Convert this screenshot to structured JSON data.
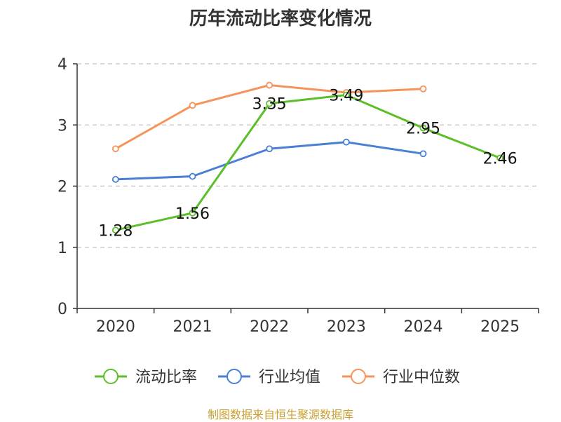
{
  "chart_data": {
    "type": "line",
    "title": "历年流动比率变化情况",
    "categories": [
      "2020",
      "2021",
      "2022",
      "2023",
      "2024",
      "2025"
    ],
    "ylim": [
      0,
      4
    ],
    "yticks": [
      0,
      1,
      2,
      3,
      4
    ],
    "grid": true,
    "legend_position": "bottom",
    "series": [
      {
        "name": "流动比率",
        "color": "#5cbf2a",
        "values": [
          1.28,
          1.56,
          3.35,
          3.49,
          2.95,
          2.46
        ],
        "show_labels": true
      },
      {
        "name": "行业均值",
        "color": "#4a7fd6",
        "values": [
          2.11,
          2.16,
          2.61,
          2.72,
          2.53,
          null
        ],
        "show_labels": false
      },
      {
        "name": "行业中位数",
        "color": "#f5935a",
        "values": [
          2.61,
          3.32,
          3.65,
          3.53,
          3.59,
          null
        ],
        "show_labels": false
      }
    ]
  },
  "source": "制图数据来自恒生聚源数据库"
}
